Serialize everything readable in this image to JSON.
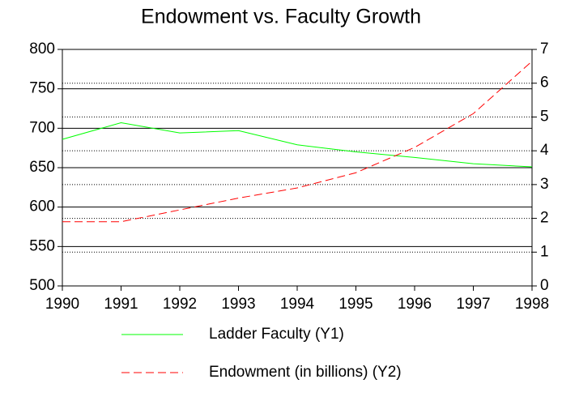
{
  "chart_data": {
    "type": "line",
    "title": "Endowment vs. Faculty Growth",
    "categories": [
      "1990",
      "1991",
      "1992",
      "1993",
      "1994",
      "1995",
      "1996",
      "1997",
      "1998"
    ],
    "series": [
      {
        "name": "Ladder Faculty (Y1)",
        "color": "#00ff00",
        "values": [
          686,
          707,
          694,
          697,
          679,
          670,
          663,
          655,
          651
        ]
      },
      {
        "name": "Endowment (in billions) (Y2)",
        "color": "#ff0000",
        "axis": "y2",
        "dash": true,
        "values": [
          1.9,
          1.9,
          2.25,
          2.6,
          2.9,
          3.35,
          4.1,
          5.1,
          6.65
        ]
      }
    ],
    "ylim": [
      500,
      800
    ],
    "yticks": [
      500,
      550,
      600,
      650,
      700,
      750,
      800
    ],
    "y2lim": [
      0,
      7
    ],
    "y2ticks": [
      0,
      1,
      2,
      3,
      4,
      5,
      6,
      7
    ],
    "grid": true
  }
}
